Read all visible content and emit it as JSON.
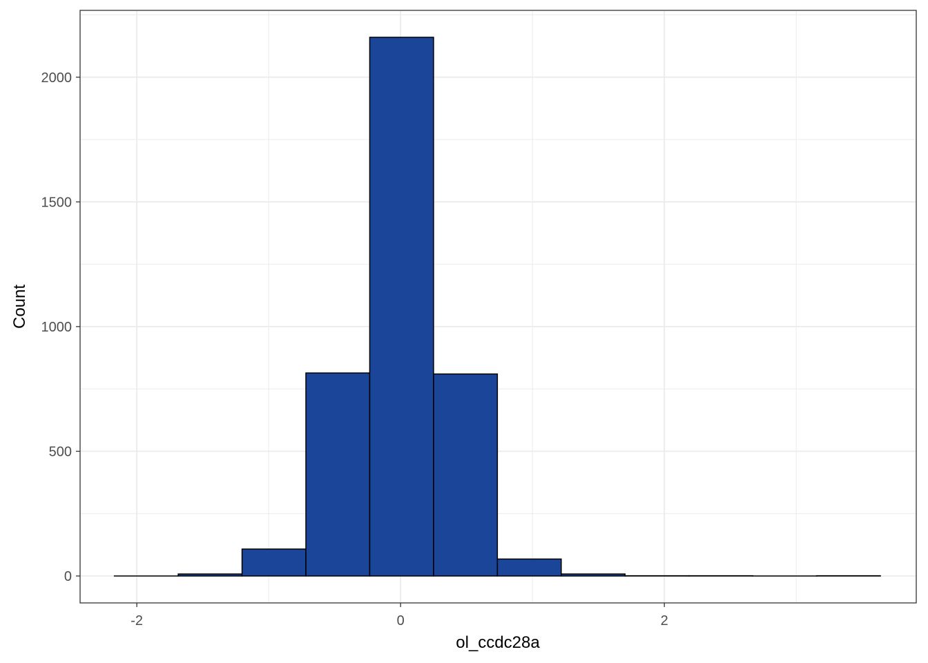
{
  "chart_data": {
    "type": "bar",
    "title": "",
    "xlabel": "ol_ccdc28a",
    "ylabel": "Count",
    "x_ticks": [
      -2,
      0,
      2
    ],
    "x_tick_labels": [
      "-2",
      "0",
      "2"
    ],
    "y_ticks": [
      0,
      500,
      1000,
      1500,
      2000
    ],
    "y_tick_labels": [
      "0",
      "500",
      "1000",
      "1500",
      "2000"
    ],
    "xlim": [
      -2.43,
      3.91
    ],
    "ylim": [
      -108,
      2268
    ],
    "grid": true,
    "bin_width": 0.484,
    "bins": [
      {
        "x0": -2.17,
        "x1": -1.686,
        "count": 0
      },
      {
        "x0": -1.686,
        "x1": -1.202,
        "count": 8
      },
      {
        "x0": -1.202,
        "x1": -0.718,
        "count": 108
      },
      {
        "x0": -0.718,
        "x1": -0.234,
        "count": 814
      },
      {
        "x0": -0.234,
        "x1": 0.25,
        "count": 2160
      },
      {
        "x0": 0.25,
        "x1": 0.734,
        "count": 810
      },
      {
        "x0": 0.734,
        "x1": 1.218,
        "count": 68
      },
      {
        "x0": 1.218,
        "x1": 1.702,
        "count": 8
      },
      {
        "x0": 1.702,
        "x1": 2.186,
        "count": 1
      },
      {
        "x0": 2.186,
        "x1": 2.67,
        "count": 1
      },
      {
        "x0": 2.67,
        "x1": 3.154,
        "count": 0
      },
      {
        "x0": 3.154,
        "x1": 3.638,
        "count": 1
      }
    ],
    "colors": {
      "fill": "#1A4599",
      "stroke": "#000000",
      "grid": "#ebebeb",
      "panel_border": "#333333"
    }
  }
}
